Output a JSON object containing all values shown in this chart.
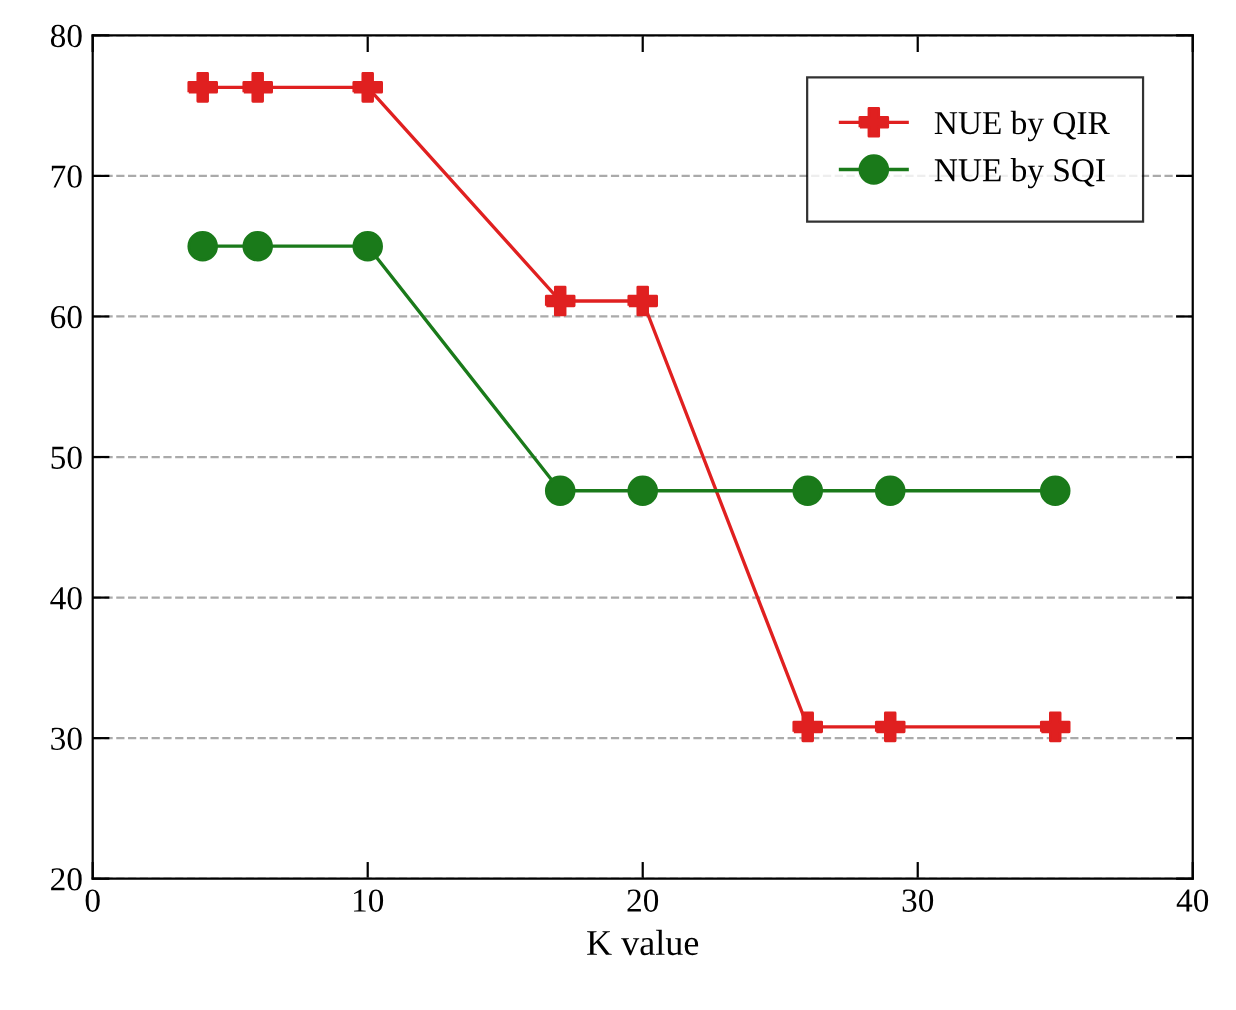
{
  "chart_data": {
    "type": "line",
    "xlabel": "K value",
    "x": [
      4,
      6,
      10,
      17,
      20,
      26,
      29,
      35
    ],
    "series": [
      {
        "name": "NUE by QIR",
        "color": "#e02020",
        "marker": "cross",
        "values": [
          76.3,
          76.3,
          76.3,
          61.1,
          61.1,
          30.8,
          30.8,
          30.8
        ]
      },
      {
        "name": "NUE by SQI",
        "color": "#1a7a1a",
        "marker": "circle",
        "values": [
          65,
          65,
          65,
          47.6,
          47.6,
          47.6,
          47.6,
          47.6
        ]
      }
    ],
    "xlim": [
      0,
      40
    ],
    "xticks": [
      0,
      10,
      20,
      30,
      40
    ],
    "ylim": [
      20,
      80
    ],
    "yticks": [
      20,
      30,
      40,
      50,
      60,
      70,
      80
    ],
    "grid": "y",
    "legend": "top right",
    "line_style": "solid"
  }
}
